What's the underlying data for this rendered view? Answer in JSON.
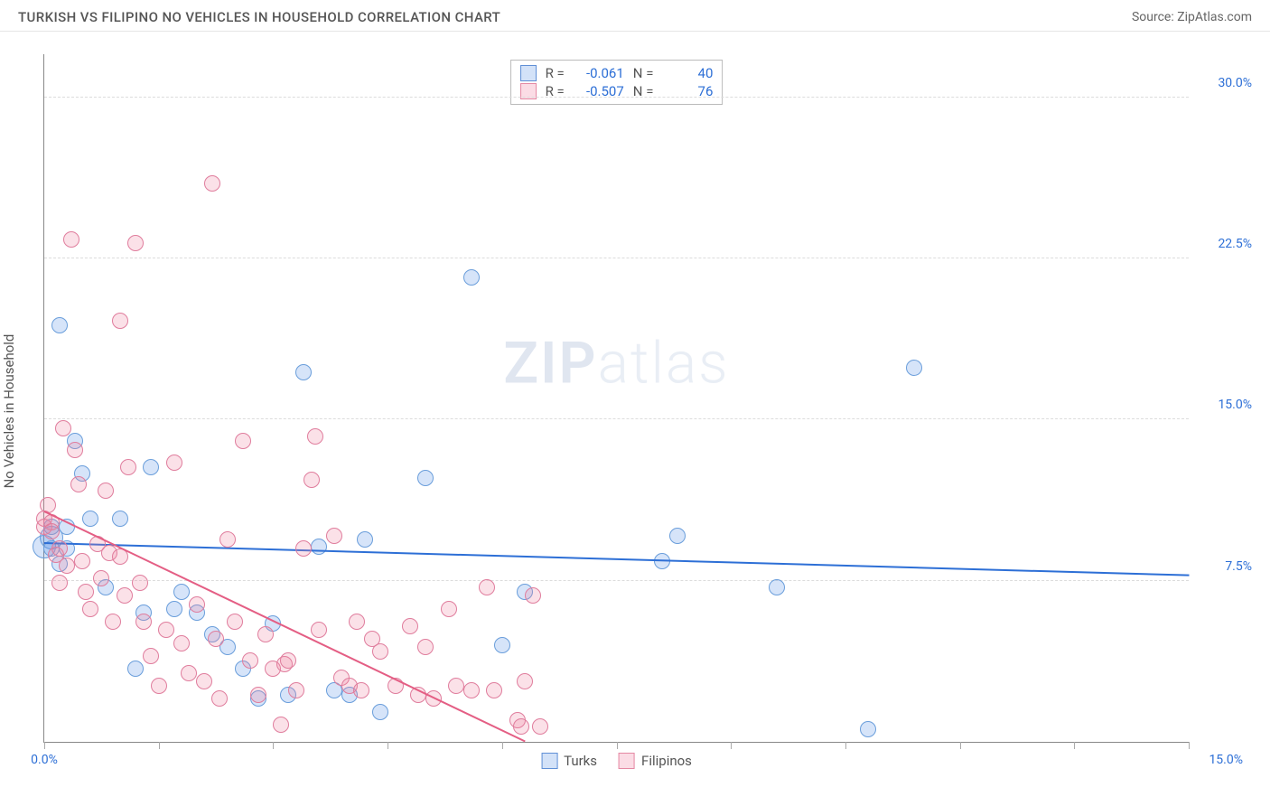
{
  "title": "TURKISH VS FILIPINO NO VEHICLES IN HOUSEHOLD CORRELATION CHART",
  "source_prefix": "Source: ",
  "source_name": "ZipAtlas.com",
  "ylabel": "No Vehicles in Household",
  "watermark_part1": "ZIP",
  "watermark_part2": "atlas",
  "stats": [
    {
      "r_label": "R =",
      "r": "-0.061",
      "n_label": "N =",
      "n": "40",
      "fill": "rgba(96,150,230,0.28)",
      "stroke": "#5f8fd6"
    },
    {
      "r_label": "R =",
      "r": "-0.507",
      "n_label": "N =",
      "n": "76",
      "fill": "rgba(240,130,160,0.28)",
      "stroke": "#e488a3"
    }
  ],
  "legend": [
    {
      "label": "Turks",
      "fill": "rgba(96,150,230,0.28)",
      "stroke": "#5f8fd6"
    },
    {
      "label": "Filipinos",
      "fill": "rgba(240,130,160,0.28)",
      "stroke": "#e488a3"
    }
  ],
  "chart": {
    "type": "scatter",
    "xlim": [
      0,
      15
    ],
    "ylim": [
      0,
      32
    ],
    "x_ticks_major": [
      0,
      1.5,
      3,
      4.5,
      6,
      7.5,
      9,
      10.5,
      12,
      13.5,
      15
    ],
    "x_tick_labels": [
      {
        "x": 0,
        "label": "0.0%"
      }
    ],
    "x_right_label": "15.0%",
    "y_grid": [
      7.5,
      15.0,
      22.5,
      30.0
    ],
    "y_tick_labels": [
      {
        "y": 7.5,
        "label": "7.5%"
      },
      {
        "y": 15.0,
        "label": "15.0%"
      },
      {
        "y": 22.5,
        "label": "22.5%"
      },
      {
        "y": 30.0,
        "label": "30.0%"
      }
    ],
    "background_color": "#ffffff",
    "grid_color": "#dcdcdc",
    "point_radius": 9,
    "point_radius_large": 13,
    "series": [
      {
        "name": "Turks",
        "fill": "rgba(96,150,230,0.26)",
        "stroke": "#6a9edb",
        "stroke_width": 1,
        "points": [
          [
            0.0,
            9.1
          ],
          [
            0.1,
            9.5
          ],
          [
            0.1,
            10.0
          ],
          [
            0.1,
            9.0
          ],
          [
            0.2,
            8.3
          ],
          [
            0.2,
            19.4
          ],
          [
            0.3,
            10.0
          ],
          [
            0.3,
            9.0
          ],
          [
            0.4,
            14.0
          ],
          [
            0.5,
            12.5
          ],
          [
            0.6,
            10.4
          ],
          [
            0.8,
            7.2
          ],
          [
            1.0,
            10.4
          ],
          [
            1.2,
            3.4
          ],
          [
            1.3,
            6.0
          ],
          [
            1.4,
            12.8
          ],
          [
            1.7,
            6.2
          ],
          [
            1.8,
            7.0
          ],
          [
            2.0,
            6.0
          ],
          [
            2.2,
            5.0
          ],
          [
            2.4,
            4.4
          ],
          [
            2.6,
            3.4
          ],
          [
            2.8,
            2.0
          ],
          [
            3.0,
            5.5
          ],
          [
            3.2,
            2.2
          ],
          [
            3.4,
            17.2
          ],
          [
            3.6,
            9.1
          ],
          [
            3.8,
            2.4
          ],
          [
            4.0,
            2.2
          ],
          [
            4.2,
            9.4
          ],
          [
            4.4,
            1.4
          ],
          [
            5.0,
            12.3
          ],
          [
            5.6,
            21.6
          ],
          [
            6.0,
            4.5
          ],
          [
            6.3,
            7.0
          ],
          [
            8.1,
            8.4
          ],
          [
            8.3,
            9.6
          ],
          [
            9.6,
            7.2
          ],
          [
            11.4,
            17.4
          ],
          [
            10.8,
            0.6
          ]
        ],
        "line": {
          "x1": 0,
          "y1": 9.2,
          "x2": 15,
          "y2": 7.7,
          "color": "#2d6fd6",
          "width": 2
        }
      },
      {
        "name": "Filipinos",
        "fill": "rgba(240,130,160,0.24)",
        "stroke": "#e07d9d",
        "stroke_width": 1,
        "points": [
          [
            0.0,
            10.4
          ],
          [
            0.0,
            10.0
          ],
          [
            0.05,
            11.0
          ],
          [
            0.1,
            10.2
          ],
          [
            0.1,
            9.8
          ],
          [
            0.15,
            8.7
          ],
          [
            0.2,
            9.0
          ],
          [
            0.2,
            7.4
          ],
          [
            0.25,
            14.6
          ],
          [
            0.3,
            8.2
          ],
          [
            0.35,
            23.4
          ],
          [
            0.4,
            13.6
          ],
          [
            0.45,
            12.0
          ],
          [
            0.5,
            8.4
          ],
          [
            0.55,
            7.0
          ],
          [
            0.6,
            6.2
          ],
          [
            0.7,
            9.2
          ],
          [
            0.75,
            7.6
          ],
          [
            0.8,
            11.7
          ],
          [
            0.85,
            8.8
          ],
          [
            0.9,
            5.6
          ],
          [
            1.0,
            19.6
          ],
          [
            1.0,
            8.6
          ],
          [
            1.05,
            6.8
          ],
          [
            1.1,
            12.8
          ],
          [
            1.2,
            23.2
          ],
          [
            1.25,
            7.4
          ],
          [
            1.3,
            5.6
          ],
          [
            1.4,
            4.0
          ],
          [
            1.5,
            2.6
          ],
          [
            1.6,
            5.2
          ],
          [
            1.7,
            13.0
          ],
          [
            1.8,
            4.6
          ],
          [
            1.9,
            3.2
          ],
          [
            2.0,
            6.4
          ],
          [
            2.1,
            2.8
          ],
          [
            2.2,
            26.0
          ],
          [
            2.25,
            4.8
          ],
          [
            2.3,
            2.0
          ],
          [
            2.4,
            9.4
          ],
          [
            2.5,
            5.6
          ],
          [
            2.6,
            14.0
          ],
          [
            2.7,
            3.8
          ],
          [
            2.8,
            2.2
          ],
          [
            2.9,
            5.0
          ],
          [
            3.0,
            3.4
          ],
          [
            3.1,
            0.8
          ],
          [
            3.15,
            3.6
          ],
          [
            3.2,
            3.8
          ],
          [
            3.3,
            2.4
          ],
          [
            3.4,
            9.0
          ],
          [
            3.5,
            12.2
          ],
          [
            3.55,
            14.2
          ],
          [
            3.6,
            5.2
          ],
          [
            3.8,
            9.6
          ],
          [
            3.9,
            3.0
          ],
          [
            4.0,
            2.6
          ],
          [
            4.1,
            5.6
          ],
          [
            4.15,
            2.4
          ],
          [
            4.3,
            4.8
          ],
          [
            4.4,
            4.2
          ],
          [
            4.6,
            2.6
          ],
          [
            4.8,
            5.4
          ],
          [
            4.9,
            2.2
          ],
          [
            5.0,
            4.4
          ],
          [
            5.1,
            2.0
          ],
          [
            5.3,
            6.2
          ],
          [
            5.4,
            2.6
          ],
          [
            5.6,
            2.4
          ],
          [
            5.8,
            7.2
          ],
          [
            5.9,
            2.4
          ],
          [
            6.2,
            1.0
          ],
          [
            6.25,
            0.7
          ],
          [
            6.3,
            2.8
          ],
          [
            6.4,
            6.8
          ],
          [
            6.5,
            0.7
          ]
        ],
        "line": {
          "x1": 0,
          "y1": 10.7,
          "x2": 6.3,
          "y2": 0,
          "color": "#e45e84",
          "width": 2
        }
      }
    ]
  }
}
